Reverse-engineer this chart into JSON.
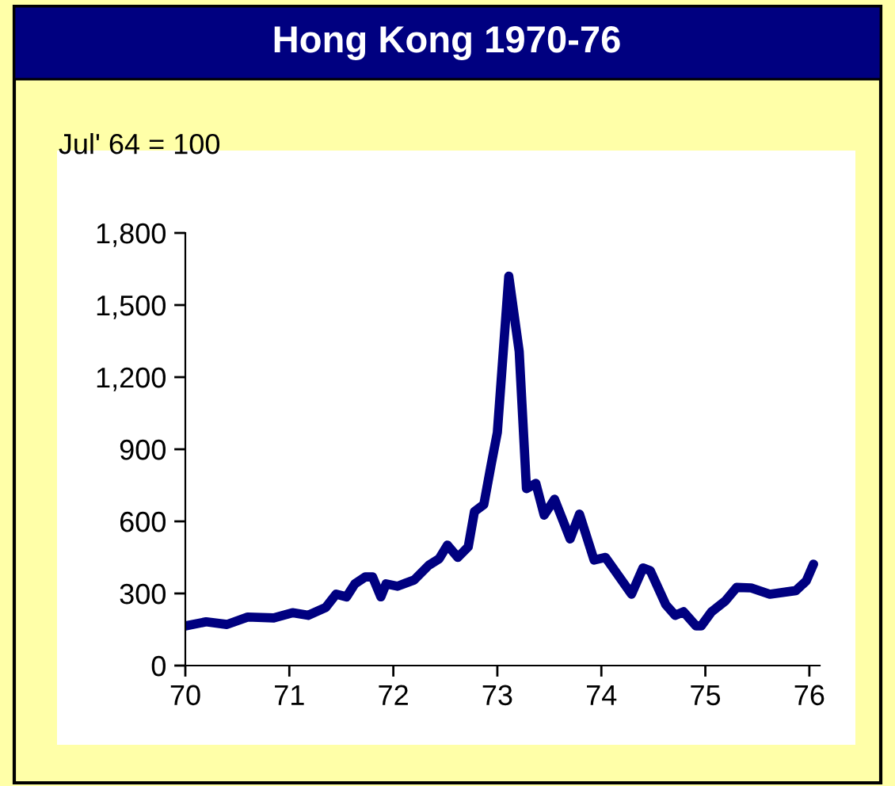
{
  "chart_data": {
    "type": "line",
    "title": "Hong Kong 1970-76",
    "ylabel": "Jul' 64 = 100",
    "series": [
      {
        "color": "#000080",
        "x": [
          70.0,
          70.2,
          70.4,
          70.6,
          70.85,
          71.03,
          71.18,
          71.35,
          71.45,
          71.55,
          71.63,
          71.73,
          71.8,
          71.88,
          71.93,
          72.04,
          72.2,
          72.34,
          72.44,
          72.52,
          72.62,
          72.72,
          72.78,
          72.87,
          72.94,
          73.0,
          73.11,
          73.21,
          73.28,
          73.37,
          73.45,
          73.55,
          73.7,
          73.79,
          73.93,
          74.04,
          74.29,
          74.4,
          74.47,
          74.62,
          74.71,
          74.79,
          74.91,
          74.96,
          75.06,
          75.19,
          75.3,
          75.44,
          75.62,
          75.87,
          75.97,
          76.04
        ],
        "values": [
          165,
          182,
          171,
          202,
          198,
          220,
          209,
          242,
          297,
          286,
          340,
          369,
          369,
          286,
          340,
          330,
          356,
          417,
          444,
          501,
          450,
          494,
          641,
          670,
          835,
          970,
          1620,
          1307,
          736,
          758,
          626,
          692,
          527,
          630,
          439,
          450,
          297,
          406,
          395,
          253,
          209,
          224,
          165,
          165,
          224,
          268,
          325,
          323,
          297,
          312,
          352,
          422
        ]
      }
    ],
    "xlim": [
      70,
      76.1
    ],
    "xticks": [
      70,
      71,
      72,
      73,
      74,
      75,
      76
    ],
    "ylim": [
      0,
      1800
    ],
    "yticks": [
      0,
      300,
      600,
      900,
      {
        "value": 1200,
        "label": "1,200"
      },
      {
        "value": 1500,
        "label": "1,500"
      },
      {
        "value": 1800,
        "label": "1,800"
      }
    ],
    "grid": false,
    "legend": false,
    "marker": "none",
    "line_style": "solid"
  }
}
